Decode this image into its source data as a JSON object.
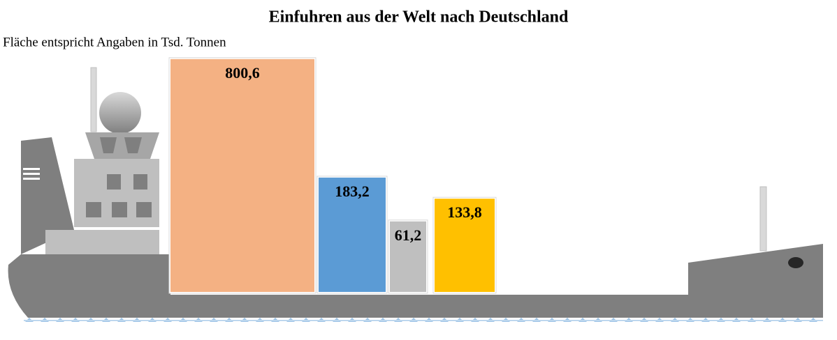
{
  "chart_data": {
    "type": "area-boxes",
    "title": "Einfuhren aus der Welt nach Deutschland",
    "subtitle": "Fläche entspricht Angaben in Tsd. Tonnen",
    "values": [
      800.6,
      183.2,
      61.2,
      133.8
    ],
    "value_labels": [
      "800,6",
      "183,2",
      "61,2",
      "133,8"
    ],
    "colors": [
      "#f4b183",
      "#5b9bd5",
      "#bfbfbf",
      "#ffc000"
    ]
  }
}
